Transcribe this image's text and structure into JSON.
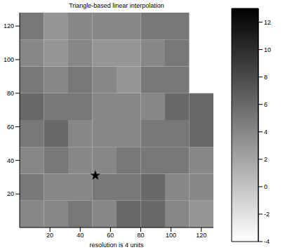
{
  "chart_data": {
    "type": "heatmap",
    "title": "Triangle-based linear interpolation",
    "xlabel": "resolution is 4 units",
    "xlim": [
      0,
      128
    ],
    "ylim": [
      0,
      128
    ],
    "xticks": [
      20,
      40,
      60,
      80,
      100,
      120
    ],
    "yticks": [
      20,
      40,
      60,
      80,
      100,
      120
    ],
    "cell_x_edges": [
      0,
      16,
      32,
      48,
      64,
      80,
      96,
      112,
      128
    ],
    "cell_y_edges": [
      0,
      16,
      32,
      48,
      64,
      80,
      96,
      112,
      128
    ],
    "cells": [
      [
        4,
        4,
        5,
        4,
        6,
        6,
        4,
        3
      ],
      [
        5,
        4,
        4,
        5,
        5,
        6,
        4,
        4
      ],
      [
        4,
        5,
        4,
        4,
        5,
        5,
        5,
        4
      ],
      [
        5,
        6,
        4,
        4,
        4,
        5,
        5,
        6
      ],
      [
        6,
        5,
        5,
        4,
        4,
        4,
        6,
        6
      ],
      [
        5,
        4,
        5,
        4,
        3,
        5,
        5,
        null
      ],
      [
        4,
        3,
        4,
        3,
        3,
        4,
        5,
        null
      ],
      [
        5,
        3,
        4,
        4,
        4,
        5,
        5,
        null
      ]
    ],
    "colorbar_range": [
      -4,
      13
    ],
    "colorbar_ticks": [
      -4,
      -2,
      0,
      2,
      4,
      6,
      8,
      10,
      12
    ],
    "points": {
      "x": [
        50
      ],
      "y": [
        31
      ]
    },
    "marker": "star",
    "color": "#000000"
  }
}
